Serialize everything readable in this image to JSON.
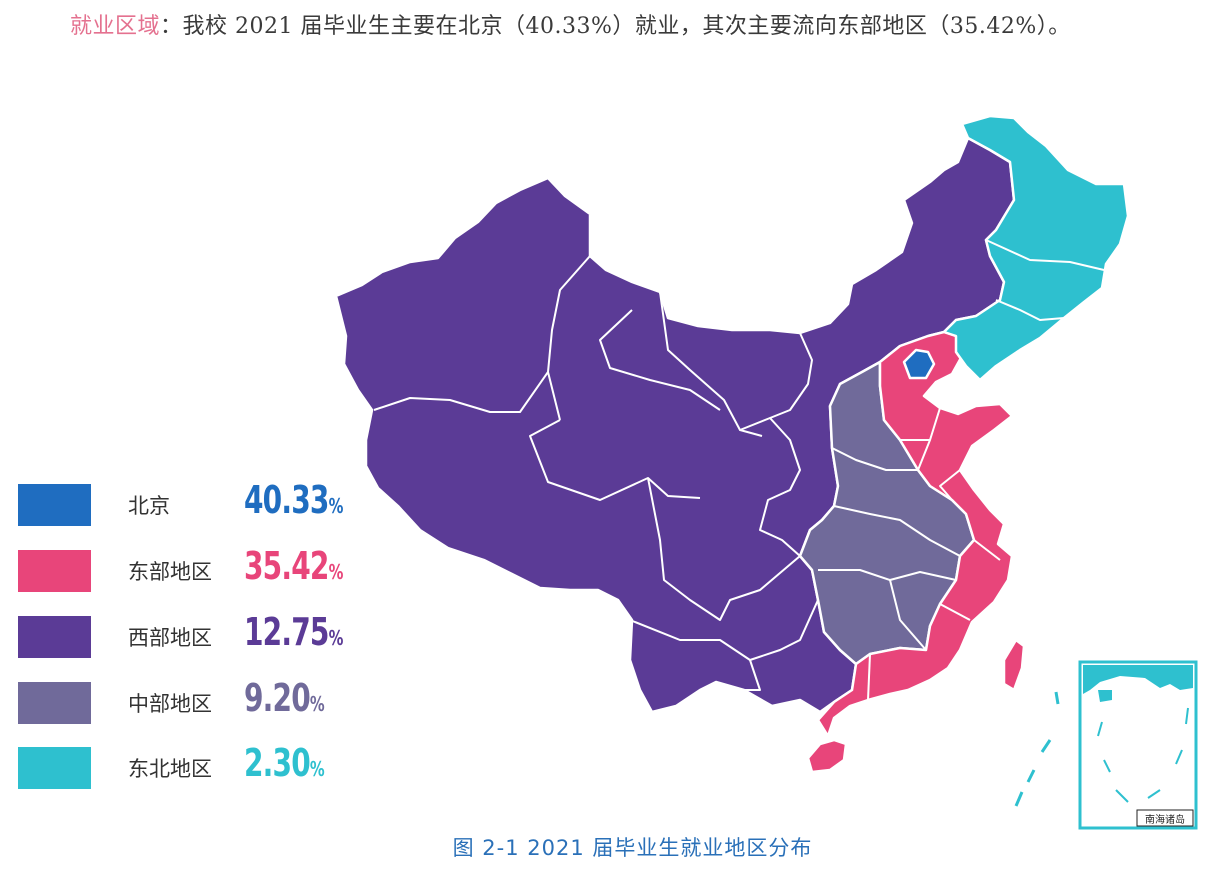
{
  "header": {
    "keyword": "就业区域",
    "separator": "：",
    "text": "我校 2021 届毕业生主要在北京（40.33%）就业，其次主要流向东部地区（35.42%）。"
  },
  "legend": [
    {
      "label": "北京",
      "value": "40.33",
      "unit": "%",
      "color": "#1f6dc0"
    },
    {
      "label": "东部地区",
      "value": "35.42",
      "unit": "%",
      "color": "#e8457a"
    },
    {
      "label": "西部地区",
      "value": "12.75",
      "unit": "%",
      "color": "#5b3b96"
    },
    {
      "label": "中部地区",
      "value": "9.20",
      "unit": "%",
      "color": "#706a9a"
    },
    {
      "label": "东北地区",
      "value": "2.30",
      "unit": "%",
      "color": "#2ec0cf"
    }
  ],
  "region_colors": {
    "beijing": "#1f6dc0",
    "east": "#e8457a",
    "west": "#5b3b96",
    "central": "#706a9a",
    "northeast": "#2ec0cf"
  },
  "inset": {
    "label": "南海诸岛"
  },
  "caption": "图 2-1  2021 届毕业生就业地区分布"
}
